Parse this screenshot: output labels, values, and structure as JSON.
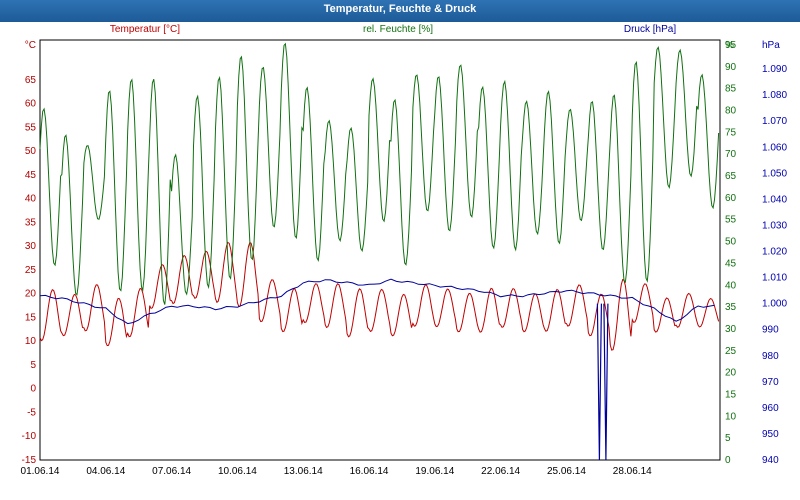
{
  "window": {
    "title": "Temperatur, Feuchte & Druck"
  },
  "chart_data": {
    "type": "line",
    "title": "Temperatur, Feuchte & Druck",
    "grid": true,
    "x_labels": [
      "01.06.14",
      "04.06.14",
      "07.06.14",
      "10.06.14",
      "13.06.14",
      "16.06.14",
      "19.06.14",
      "22.06.14",
      "25.06.14",
      "28.06.14"
    ],
    "x_range_days": [
      1,
      31
    ],
    "axes": {
      "temperature": {
        "unit": "°C",
        "min": -15,
        "max": 70,
        "ticks": [
          -15,
          -10,
          -5,
          0,
          5,
          10,
          15,
          20,
          25,
          30,
          35,
          40,
          45,
          50,
          55,
          60,
          65
        ]
      },
      "humidity": {
        "unit": "%",
        "min": 0,
        "max": 95,
        "ticks": [
          0,
          5,
          10,
          15,
          20,
          25,
          30,
          35,
          40,
          45,
          50,
          55,
          60,
          65,
          70,
          75,
          80,
          85,
          90,
          95
        ]
      },
      "pressure": {
        "unit": "hPa",
        "min": 940,
        "max": 1100,
        "ticks": [
          "940",
          "950",
          "960",
          "970",
          "980",
          "990",
          "1.000",
          "1.010",
          "1.020",
          "1.030",
          "1.040",
          "1.050",
          "1.060",
          "1.070",
          "1.080",
          "1.090"
        ]
      }
    },
    "series": [
      {
        "name": "Temperatur [°C]",
        "axis": "temperature",
        "color": "#c00000",
        "daily_min": [
          10,
          11,
          12,
          9,
          11,
          17,
          18,
          19,
          18,
          17,
          14,
          12,
          14,
          13,
          11,
          12,
          11,
          13,
          13,
          12,
          12,
          13,
          12,
          12,
          13,
          11,
          8,
          14,
          12,
          13,
          13
        ],
        "daily_max": [
          21,
          20,
          22,
          19,
          21,
          26,
          28,
          29,
          31,
          31,
          23,
          21,
          22,
          22,
          21,
          21,
          20,
          22,
          21,
          20,
          21,
          21,
          20,
          21,
          22,
          20,
          23,
          22,
          19,
          20,
          19
        ]
      },
      {
        "name": "rel. Feuchte [%]",
        "axis": "humidity",
        "color": "#107010",
        "daily_max": [
          80,
          74,
          72,
          85,
          88,
          88,
          70,
          83,
          87,
          92,
          90,
          96,
          86,
          78,
          76,
          87,
          82,
          88,
          88,
          91,
          86,
          87,
          82,
          84,
          80,
          82,
          84,
          92,
          95,
          94,
          88
        ],
        "daily_min": [
          45,
          38,
          55,
          38,
          38,
          35,
          38,
          40,
          42,
          46,
          53,
          50,
          45,
          50,
          48,
          55,
          45,
          57,
          52,
          55,
          48,
          48,
          52,
          50,
          55,
          48,
          40,
          40,
          62,
          65,
          58
        ]
      },
      {
        "name": "Druck [hPa]",
        "axis": "pressure",
        "color": "#00009c",
        "daily": [
          1003,
          1002,
          1000,
          998,
          992,
          996,
          999,
          999,
          998,
          999,
          1001,
          1003,
          1008,
          1009,
          1008,
          1007,
          1009,
          1008,
          1007,
          1006,
          1005,
          1003,
          1003,
          1004,
          1005,
          1004,
          1003,
          1002,
          998,
          993,
          999
        ],
        "dips": [
          {
            "day": 26.5,
            "value": 940
          },
          {
            "day": 26.8,
            "value": 940
          }
        ]
      }
    ]
  }
}
